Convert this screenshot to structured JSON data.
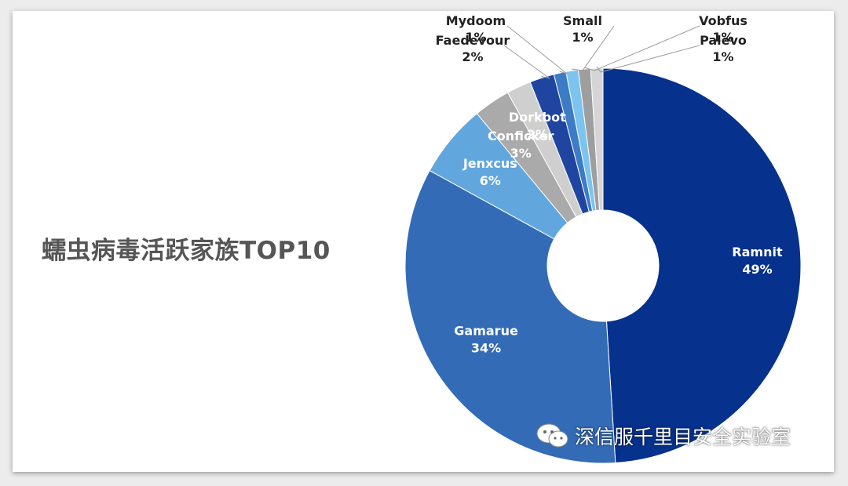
{
  "title": "蠕虫病毒活跃家族TOP10",
  "watermark": {
    "text": "深信服千里目安全实验室",
    "icon": "wechat-icon"
  },
  "chart_data": {
    "type": "pie",
    "donut": true,
    "title": "蠕虫病毒活跃家族TOP10",
    "slices": [
      {
        "name": "Ramnit",
        "value": 49,
        "label": "49%",
        "color": "#06318c"
      },
      {
        "name": "Gamarue",
        "value": 34,
        "label": "34%",
        "color": "#336bb7"
      },
      {
        "name": "Jenxcus",
        "value": 6,
        "label": "6%",
        "color": "#62a6de"
      },
      {
        "name": "Conficker",
        "value": 3,
        "label": "3%",
        "color": "#aaaaaa"
      },
      {
        "name": "Dorkbot",
        "value": 2,
        "label": "2%",
        "color": "#cfcfcf"
      },
      {
        "name": "Faedevour",
        "value": 2,
        "label": "2%",
        "color": "#1f45a0"
      },
      {
        "name": "Mydoom",
        "value": 1,
        "label": "1%",
        "color": "#3c7cc6"
      },
      {
        "name": "Small",
        "value": 1,
        "label": "1%",
        "color": "#7cc3f0"
      },
      {
        "name": "Vobfus",
        "value": 1,
        "label": "1%",
        "color": "#9e9e9e"
      },
      {
        "name": "Palevo",
        "value": 1,
        "label": "1%",
        "color": "#d5d5d5"
      }
    ]
  }
}
